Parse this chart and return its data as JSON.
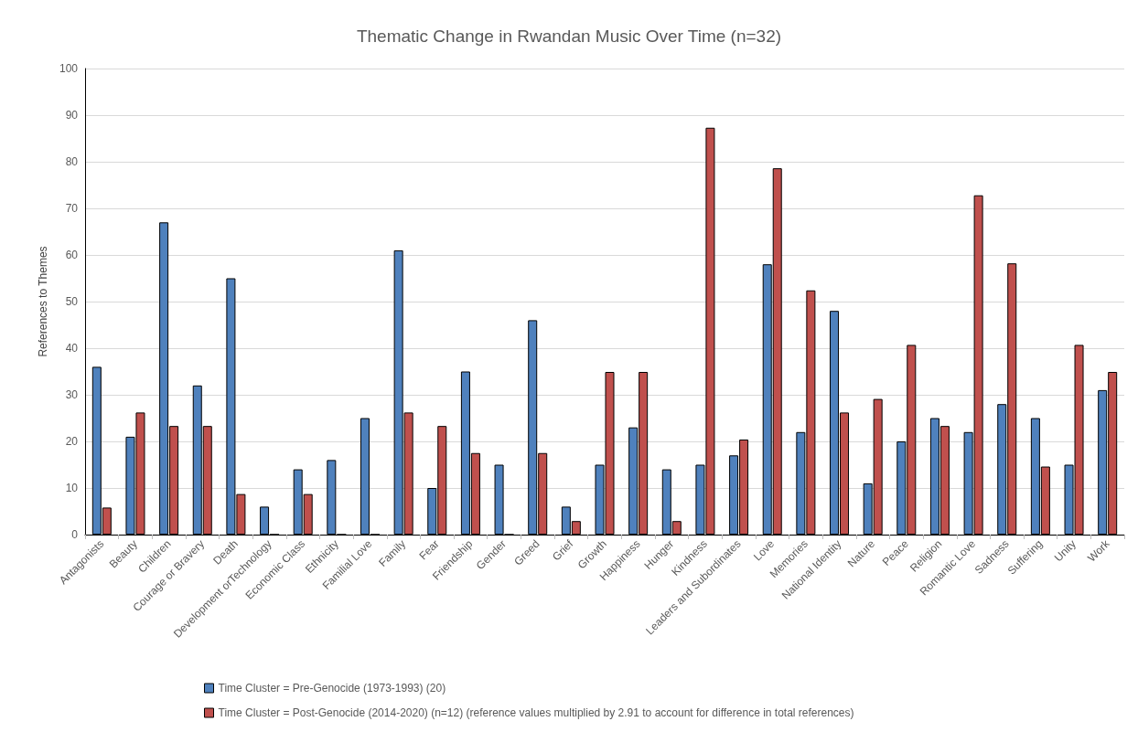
{
  "chart_data": {
    "type": "bar",
    "title": "Thematic Change in Rwandan Music Over Time (n=32)",
    "ylabel": "References to Themes",
    "categories": [
      "Antagonists",
      "Beauty",
      "Children",
      "Courage or Bravery",
      "Death",
      "Development orTechnology",
      "Economic Class",
      "Ethnicity",
      "Familial Love",
      "Family",
      "Fear",
      "Friendship",
      "Gender",
      "Greed",
      "Grief",
      "Growth",
      "Happiness",
      "Hunger",
      "Kindness",
      "Leaders and Subordinates",
      "Love",
      "Memories",
      "National Identity",
      "Nature",
      "Peace",
      "Religion",
      "Romantic Love",
      "Sadness",
      "Suffering",
      "Unity",
      "Work"
    ],
    "series": [
      {
        "name": "Time Cluster = Pre-Genocide (1973-1993) (20)",
        "color": "#4f81bd",
        "values": [
          36,
          21,
          67,
          32,
          55,
          6,
          14,
          16,
          25,
          61,
          10,
          35,
          15,
          46,
          6,
          15,
          23,
          14,
          15,
          17,
          58,
          22,
          48,
          11,
          20,
          25,
          22,
          28,
          25,
          15,
          31
        ]
      },
      {
        "name": "Time Cluster = Post-Genocide (2014-2020) (n=12) (reference values multiplied by 2.91 to account for difference in total references)",
        "color": "#c0504d",
        "values": [
          5.8,
          26.2,
          23.3,
          23.3,
          8.7,
          0,
          8.7,
          0,
          0,
          26.2,
          23.3,
          17.5,
          0,
          17.5,
          2.9,
          34.9,
          34.9,
          2.9,
          87.3,
          20.4,
          78.6,
          52.4,
          26.2,
          29.1,
          40.7,
          23.3,
          72.8,
          58.2,
          14.6,
          40.7,
          34.9
        ]
      }
    ],
    "ylim": [
      0,
      100
    ],
    "yticks": [
      0,
      10,
      20,
      30,
      40,
      50,
      60,
      70,
      80,
      90,
      100
    ],
    "grid": "y",
    "legend": "bottom left"
  }
}
